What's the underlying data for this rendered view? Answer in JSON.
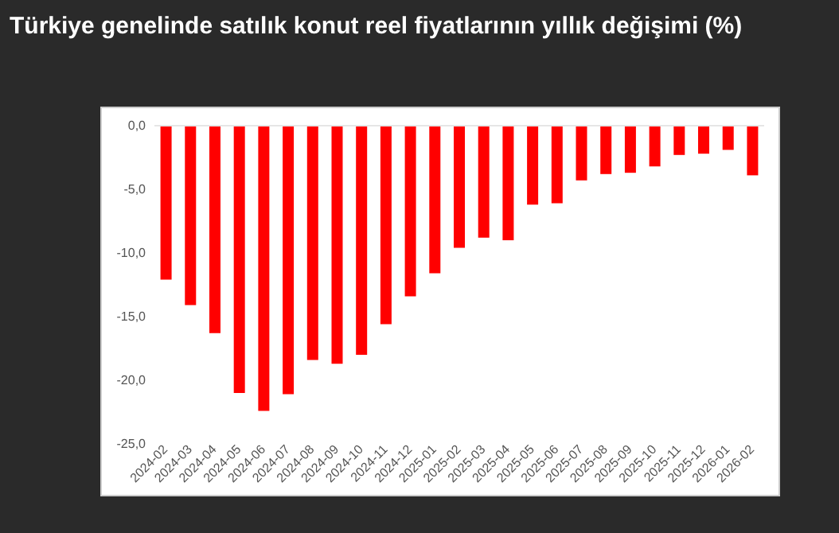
{
  "chart_data": {
    "type": "bar",
    "title": "Türkiye genelinde satılık konut reel fiyatlarının yıllık değişimi (%)",
    "categories": [
      "2024-02",
      "2024-03",
      "2024-04",
      "2024-05",
      "2024-06",
      "2024-07",
      "2024-08",
      "2024-09",
      "2024-10",
      "2024-11",
      "2024-12",
      "2025-01",
      "2025-02",
      "2025-03",
      "2025-04",
      "2025-05",
      "2025-06",
      "2025-07",
      "2025-08",
      "2025-09",
      "2025-10",
      "2025-11",
      "2025-12",
      "2026-01",
      "2026-02"
    ],
    "values": [
      -12.1,
      -14.1,
      -16.3,
      -21.0,
      -22.4,
      -21.1,
      -18.4,
      -18.7,
      -18.0,
      -15.6,
      -13.4,
      -11.6,
      -9.6,
      -8.8,
      -9.0,
      -6.2,
      -6.1,
      -4.3,
      -3.8,
      -3.7,
      -3.2,
      -2.3,
      -2.2,
      -1.9,
      -3.9
    ],
    "color": "#ff0000",
    "ylim": [
      -25,
      0
    ],
    "yticks": [
      {
        "value": -25,
        "label": "-25,0"
      },
      {
        "value": -20,
        "label": "-20,0"
      },
      {
        "value": -15,
        "label": "-15,0"
      },
      {
        "value": -10,
        "label": "-10,0"
      },
      {
        "value": -5,
        "label": "-5,0"
      },
      {
        "value": 0,
        "label": "0,0"
      }
    ],
    "grid": false
  }
}
